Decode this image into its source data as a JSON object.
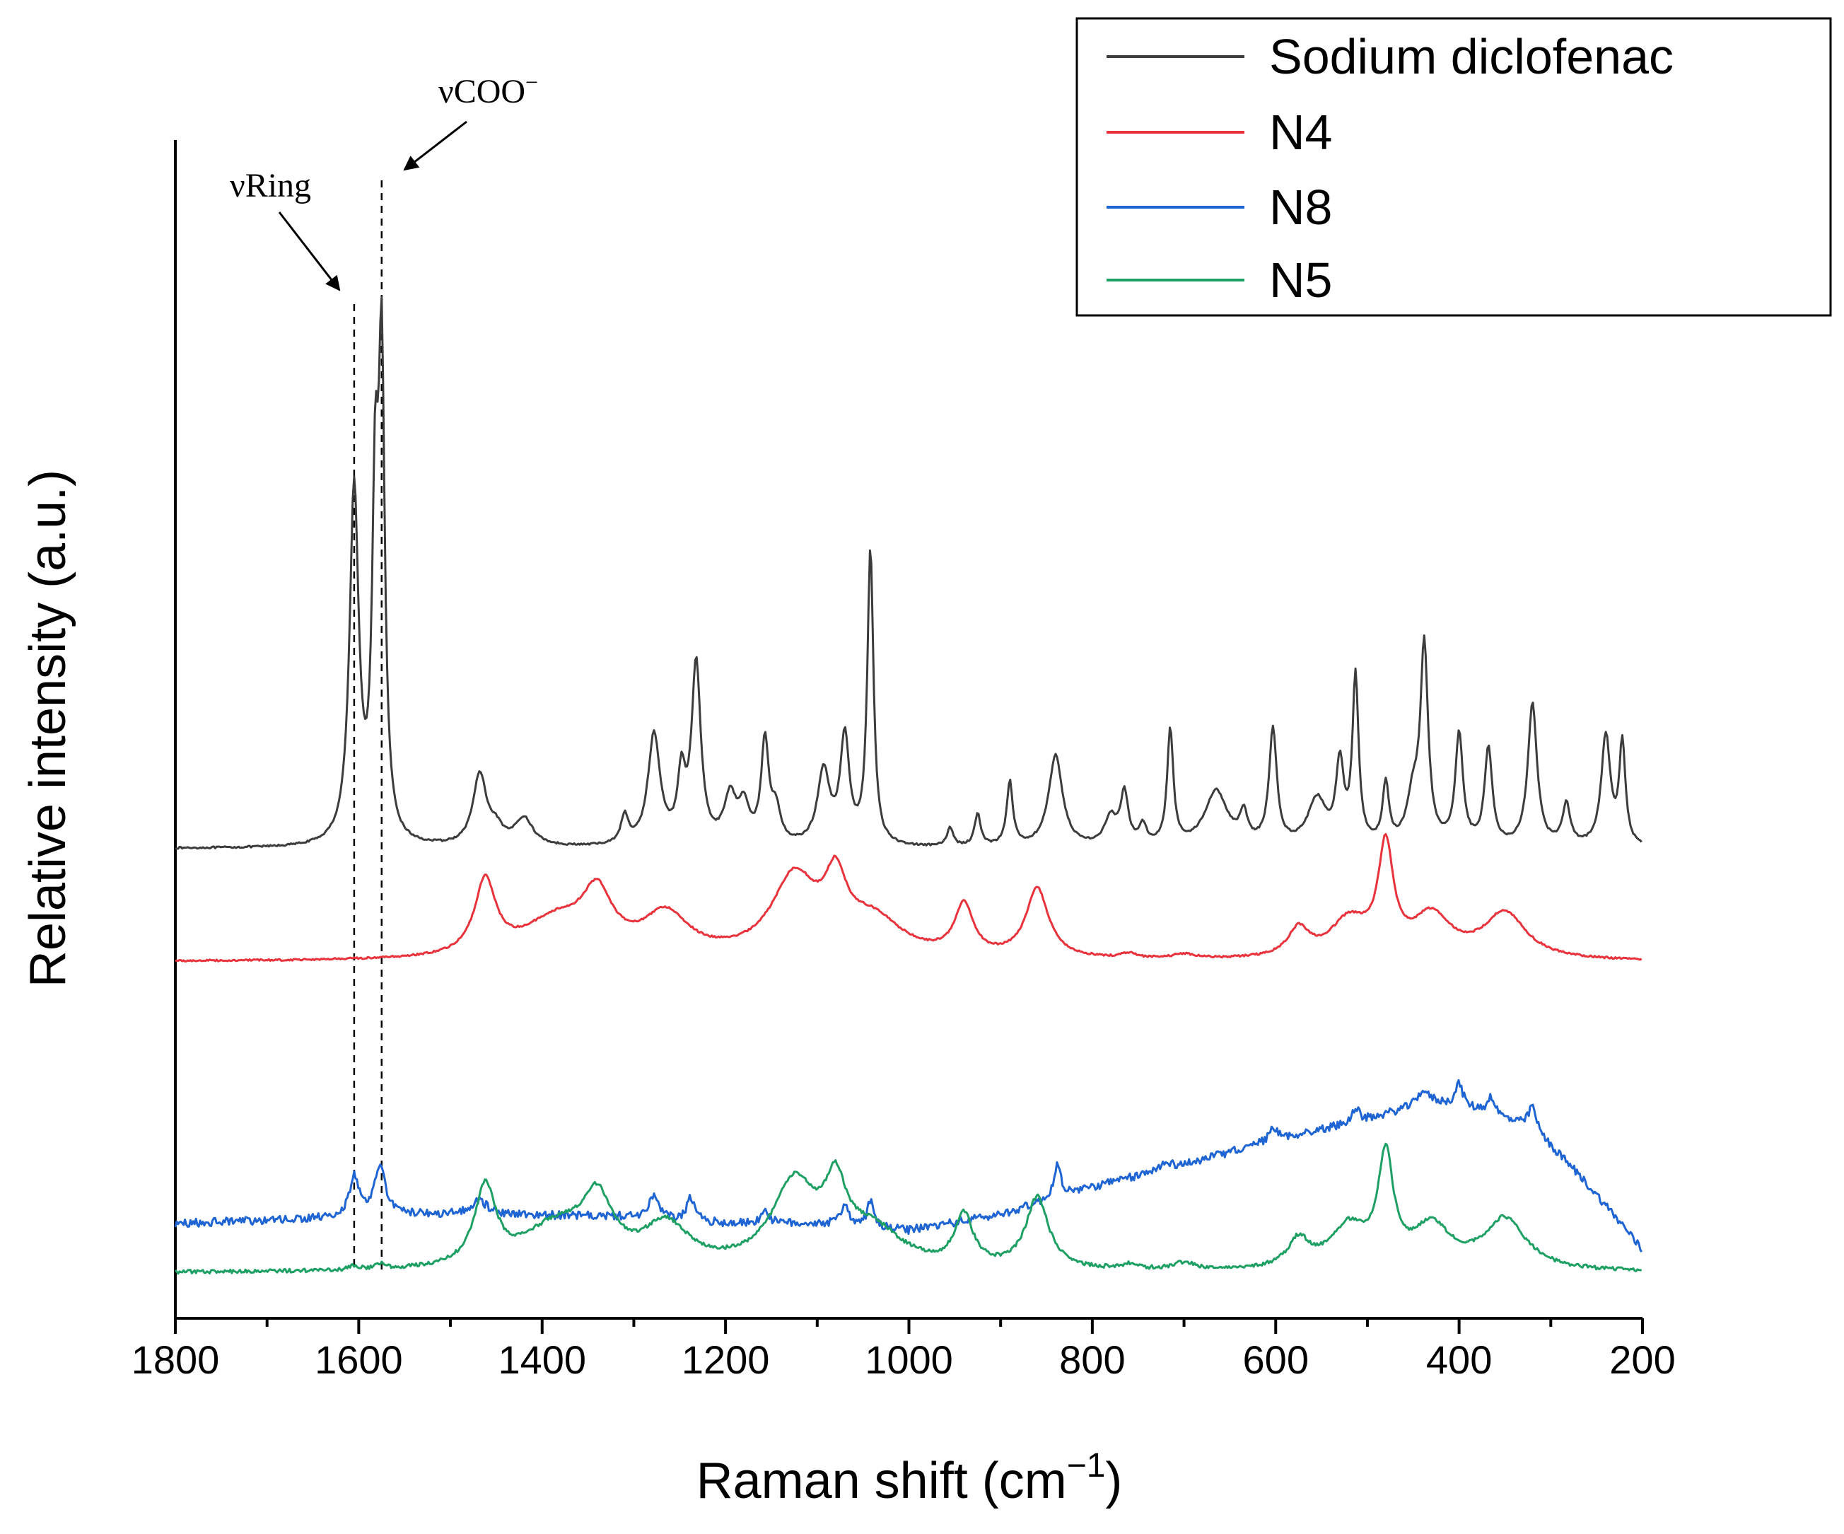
{
  "chart_data": {
    "type": "line",
    "title": "",
    "xlabel_main": "Raman shift (cm",
    "xlabel_sup": "−1",
    "xlabel_close": ")",
    "ylabel": "Relative intensity (a.u.)",
    "xlim": [
      1800,
      200
    ],
    "x_ticks": [
      1800,
      1600,
      1400,
      1200,
      1000,
      800,
      600,
      400,
      200
    ],
    "x_tick_labels": [
      "1800",
      "1600",
      "1400",
      "1200",
      "1000",
      "800",
      "600",
      "400",
      "200"
    ],
    "y_ticks_shown": false,
    "grid": false,
    "legend_position": "top-right",
    "series": [
      {
        "name": "Sodium diclofenac",
        "color": "#3c3c3c",
        "baseline": 0.62,
        "noise": 0.002,
        "slope": 0.0,
        "curve": [],
        "peaks": [
          [
            1605,
            0.77,
            6
          ],
          [
            1582,
            0.68,
            4
          ],
          [
            1575,
            1.0,
            4
          ],
          [
            1468,
            0.155,
            9
          ],
          [
            1450,
            0.03,
            8
          ],
          [
            1420,
            0.06,
            12
          ],
          [
            1310,
            0.06,
            5
          ],
          [
            1278,
            0.24,
            8
          ],
          [
            1248,
            0.14,
            5
          ],
          [
            1232,
            0.39,
            6
          ],
          [
            1195,
            0.1,
            8
          ],
          [
            1180,
            0.08,
            7
          ],
          [
            1157,
            0.22,
            5
          ],
          [
            1145,
            0.07,
            6
          ],
          [
            1093,
            0.16,
            8
          ],
          [
            1070,
            0.23,
            6
          ],
          [
            1042,
            0.64,
            4
          ],
          [
            955,
            0.04,
            4
          ],
          [
            925,
            0.07,
            4
          ],
          [
            890,
            0.14,
            4
          ],
          [
            840,
            0.2,
            9
          ],
          [
            780,
            0.06,
            8
          ],
          [
            765,
            0.11,
            5
          ],
          [
            745,
            0.04,
            5
          ],
          [
            715,
            0.25,
            4
          ],
          [
            665,
            0.12,
            15
          ],
          [
            635,
            0.06,
            5
          ],
          [
            603,
            0.25,
            5
          ],
          [
            555,
            0.1,
            12
          ],
          [
            530,
            0.17,
            5
          ],
          [
            513,
            0.36,
            4
          ],
          [
            480,
            0.13,
            4
          ],
          [
            450,
            0.1,
            8
          ],
          [
            438,
            0.42,
            5
          ],
          [
            400,
            0.24,
            5
          ],
          [
            368,
            0.21,
            5
          ],
          [
            320,
            0.31,
            6
          ],
          [
            283,
            0.09,
            5
          ],
          [
            240,
            0.24,
            6
          ],
          [
            222,
            0.22,
            4
          ]
        ]
      },
      {
        "name": "N4",
        "color": "#e8323c",
        "baseline": 0.36,
        "noise": 0.002,
        "slope": 0.0,
        "curve": [],
        "peaks": [
          [
            1462,
            0.16,
            14
          ],
          [
            1385,
            0.08,
            45
          ],
          [
            1340,
            0.12,
            20
          ],
          [
            1265,
            0.09,
            30
          ],
          [
            1125,
            0.17,
            30
          ],
          [
            1080,
            0.13,
            14
          ],
          [
            1040,
            0.08,
            40
          ],
          [
            940,
            0.11,
            12
          ],
          [
            860,
            0.15,
            15
          ],
          [
            760,
            0.01,
            10
          ],
          [
            700,
            0.01,
            15
          ],
          [
            575,
            0.06,
            14
          ],
          [
            520,
            0.08,
            25
          ],
          [
            480,
            0.23,
            10
          ],
          [
            430,
            0.09,
            25
          ],
          [
            350,
            0.1,
            28
          ]
        ]
      },
      {
        "name": "N8",
        "color": "#1e64d2",
        "baseline": 0.32,
        "noise": 0.009,
        "slope": 0.0,
        "curve": [
          [
            1800,
            0.32
          ],
          [
            1650,
            0.33
          ],
          [
            1560,
            0.34
          ],
          [
            1450,
            0.34
          ],
          [
            1300,
            0.335
          ],
          [
            1200,
            0.32
          ],
          [
            1100,
            0.32
          ],
          [
            1000,
            0.305
          ],
          [
            900,
            0.34
          ],
          [
            800,
            0.4
          ],
          [
            700,
            0.45
          ],
          [
            600,
            0.505
          ],
          [
            500,
            0.55
          ],
          [
            430,
            0.59
          ],
          [
            380,
            0.57
          ],
          [
            320,
            0.53
          ],
          [
            275,
            0.44
          ],
          [
            240,
            0.36
          ],
          [
            215,
            0.3
          ],
          [
            200,
            0.26
          ]
        ],
        "peaks": [
          [
            1605,
            0.09,
            6
          ],
          [
            1577,
            0.11,
            7
          ],
          [
            1468,
            0.03,
            10
          ],
          [
            1278,
            0.05,
            6
          ],
          [
            1238,
            0.05,
            5
          ],
          [
            1157,
            0.03,
            5
          ],
          [
            1070,
            0.05,
            5
          ],
          [
            1042,
            0.06,
            4
          ],
          [
            838,
            0.07,
            5
          ],
          [
            720,
            0.02,
            6
          ],
          [
            603,
            0.03,
            5
          ],
          [
            513,
            0.03,
            5
          ],
          [
            440,
            0.03,
            6
          ],
          [
            400,
            0.05,
            5
          ],
          [
            365,
            0.04,
            5
          ],
          [
            320,
            0.05,
            5
          ]
        ]
      },
      {
        "name": "N5",
        "color": "#1ea064",
        "baseline": 0.0,
        "noise": 0.004,
        "slope": 0.0,
        "curve": [],
        "peaks": [
          [
            1605,
            0.008,
            6
          ],
          [
            1577,
            0.012,
            6
          ],
          [
            1462,
            0.17,
            14
          ],
          [
            1385,
            0.09,
            45
          ],
          [
            1340,
            0.13,
            20
          ],
          [
            1265,
            0.09,
            30
          ],
          [
            1125,
            0.18,
            30
          ],
          [
            1080,
            0.14,
            14
          ],
          [
            1040,
            0.08,
            40
          ],
          [
            940,
            0.11,
            12
          ],
          [
            860,
            0.155,
            15
          ],
          [
            760,
            0.01,
            10
          ],
          [
            700,
            0.015,
            15
          ],
          [
            575,
            0.06,
            14
          ],
          [
            520,
            0.09,
            25
          ],
          [
            480,
            0.23,
            10
          ],
          [
            430,
            0.09,
            25
          ],
          [
            350,
            0.11,
            28
          ]
        ]
      }
    ],
    "annotations": [
      {
        "label": "νRing",
        "x": 1605
      },
      {
        "label": "νCOO",
        "sup": "−",
        "x": 1575
      }
    ]
  }
}
